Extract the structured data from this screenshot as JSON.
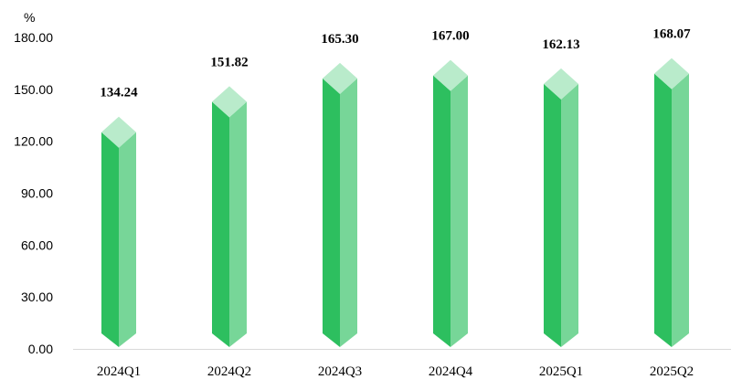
{
  "chart_data": {
    "type": "bar",
    "title": "",
    "xlabel": "",
    "ylabel": "",
    "unit": "%",
    "categories": [
      "2024Q1",
      "2024Q2",
      "2024Q3",
      "2024Q4",
      "2025Q1",
      "2025Q2"
    ],
    "values": [
      134.24,
      151.82,
      165.3,
      167.0,
      162.13,
      168.07
    ],
    "value_labels": [
      "134.24",
      "151.82",
      "165.30",
      "167.00",
      "162.13",
      "168.07"
    ],
    "ylim": [
      0,
      180
    ],
    "yticks": [
      0,
      30,
      60,
      90,
      120,
      150,
      180
    ],
    "ytick_labels": [
      "0.00",
      "30.00",
      "60.00",
      "90.00",
      "120.00",
      "150.00",
      "180.00"
    ],
    "grid": false,
    "legend": "none",
    "colors": {
      "face_left": "#2dbf5f",
      "face_right": "#77d698",
      "top_cap": "#b9ebcb",
      "axis": "#d9d9d9"
    }
  }
}
